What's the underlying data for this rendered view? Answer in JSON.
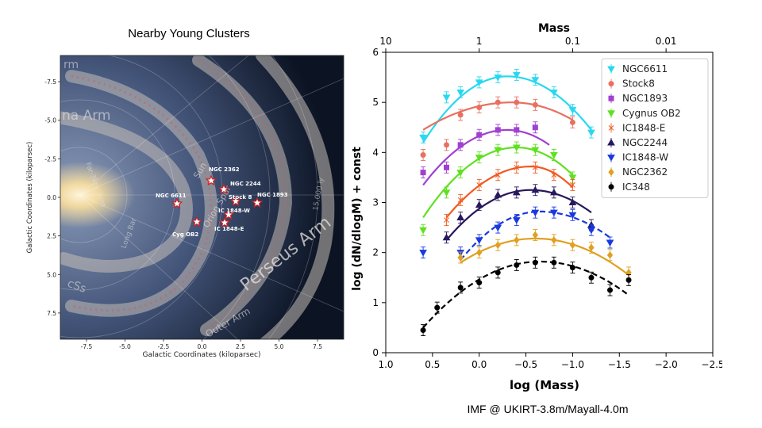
{
  "left_panel": {
    "title": "Nearby Young Clusters",
    "x_axis_label": "Galactic Coordinates (kiloparsec)",
    "y_axis_label": "Galactic Coordinates (kiloparsec)",
    "x_ticks": [
      "-7.5",
      "-5.0",
      "-2.5",
      "0.0",
      "2.5",
      "5.0",
      "7.5"
    ],
    "y_ticks": [
      "-7.5",
      "-5.0",
      "-2.5",
      "0.0",
      "2.5",
      "5.0",
      "7.5"
    ],
    "arm_labels": [
      "Perseus Arm",
      "na Arm",
      "Orion Spur",
      "Sun",
      "Far-3kpc Arm",
      "Long Bar",
      "Outer Arm",
      "15,000 ly",
      "cSs",
      "rm"
    ],
    "clusters": [
      "NGC 6611",
      "Cyg OB2",
      "NGC 2362",
      "NGC 2244",
      "Stock 8",
      "IC 1848-W",
      "IC 1848-E",
      "NGC 1893"
    ],
    "colors": {
      "star": "#ffffff",
      "star_outline": "#d02020",
      "space": "#0c1424",
      "bulge": "#f0d8a0"
    }
  },
  "caption": "IMF @ UKIRT-3.8m/Mayall-4.0m",
  "chart_data": {
    "type": "scatter",
    "xlabel": "log (Mass)",
    "ylabel": "log (dN/dlogM) + const",
    "top_axis_label": "Mass",
    "top_ticks": [
      "10",
      "1",
      "0.1",
      "0.01"
    ],
    "top_tick_values": [
      1,
      0,
      -1,
      -2
    ],
    "xlim": [
      1.0,
      -2.5
    ],
    "ylim": [
      0,
      6
    ],
    "x_ticks": [
      "1.0",
      "0.5",
      "0.0",
      "−0.5",
      "−1.0",
      "−1.5",
      "−2.0",
      "−2.5"
    ],
    "x_tick_values": [
      1.0,
      0.5,
      0.0,
      -0.5,
      -1.0,
      -1.5,
      -2.0,
      -2.5
    ],
    "y_ticks": [
      "0",
      "1",
      "2",
      "3",
      "4",
      "5",
      "6"
    ],
    "y_tick_values": [
      0,
      1,
      2,
      3,
      4,
      5,
      6
    ],
    "legend_position": "top-right",
    "grid": false,
    "series": [
      {
        "name": "NGC6611",
        "color": "#28d8f0",
        "marker": "triangle-down",
        "x": [
          0.6,
          0.35,
          0.2,
          0.0,
          -0.2,
          -0.4,
          -0.6,
          -0.8,
          -1.0,
          -1.2
        ],
        "y": [
          4.3,
          5.1,
          5.2,
          5.4,
          5.5,
          5.55,
          5.45,
          5.2,
          4.85,
          4.4
        ],
        "fit_x": [
          0.6,
          -1.2
        ],
        "fit_peak_x": -0.3,
        "fit_peak_y": 5.52,
        "fit_end_y": [
          4.2,
          4.45
        ],
        "fit_style": "solid"
      },
      {
        "name": "Stock8",
        "color": "#e87060",
        "marker": "circle",
        "x": [
          0.6,
          0.35,
          0.2,
          0.0,
          -0.2,
          -0.4,
          -0.6,
          -1.0
        ],
        "y": [
          3.95,
          4.15,
          4.75,
          4.9,
          5.0,
          5.0,
          4.95,
          4.6
        ],
        "fit_x": [
          0.6,
          -1.0
        ],
        "fit_peak_x": -0.35,
        "fit_peak_y": 5.0,
        "fit_end_y": [
          4.45,
          4.65
        ],
        "fit_style": "solid"
      },
      {
        "name": "NGC1893",
        "color": "#a040d0",
        "marker": "square",
        "x": [
          0.6,
          0.35,
          0.2,
          0.0,
          -0.2,
          -0.4,
          -0.6
        ],
        "y": [
          3.6,
          3.7,
          4.15,
          4.35,
          4.45,
          4.45,
          4.5
        ],
        "fit_x": [
          0.6,
          -0.75
        ],
        "fit_peak_x": -0.3,
        "fit_peak_y": 4.45,
        "fit_end_y": [
          3.35,
          4.15
        ],
        "fit_style": "solid"
      },
      {
        "name": "Cygnus OB2",
        "color": "#60e020",
        "marker": "triangle-down",
        "x": [
          0.6,
          0.35,
          0.2,
          0.0,
          -0.2,
          -0.4,
          -0.6,
          -0.8,
          -1.0
        ],
        "y": [
          2.45,
          3.2,
          3.6,
          3.9,
          4.05,
          4.1,
          4.05,
          3.95,
          3.5
        ],
        "fit_x": [
          0.6,
          -1.0
        ],
        "fit_peak_x": -0.4,
        "fit_peak_y": 4.1,
        "fit_end_y": [
          2.7,
          3.55
        ],
        "fit_style": "solid"
      },
      {
        "name": "IC1848-E",
        "color": "#f05a20",
        "marker": "x",
        "x": [
          0.35,
          0.2,
          0.0,
          -0.2,
          -0.4,
          -0.6,
          -0.8,
          -1.0
        ],
        "y": [
          2.65,
          3.05,
          3.35,
          3.55,
          3.7,
          3.7,
          3.55,
          3.35
        ],
        "fit_x": [
          0.35,
          -1.0
        ],
        "fit_peak_x": -0.55,
        "fit_peak_y": 3.72,
        "fit_end_y": [
          2.7,
          3.3
        ],
        "fit_style": "solid"
      },
      {
        "name": "NGC2244",
        "color": "#28185c",
        "marker": "triangle-up",
        "x": [
          0.35,
          0.2,
          0.0,
          -0.2,
          -0.4,
          -0.6,
          -0.8,
          -1.0,
          -1.2
        ],
        "y": [
          2.3,
          2.7,
          2.95,
          3.15,
          3.2,
          3.25,
          3.2,
          3.0,
          2.55
        ],
        "fit_x": [
          0.35,
          -1.2
        ],
        "fit_peak_x": -0.55,
        "fit_peak_y": 3.25,
        "fit_end_y": [
          2.25,
          2.8
        ],
        "fit_style": "solid"
      },
      {
        "name": "IC1848-W",
        "color": "#1838e0",
        "marker": "triangle-down",
        "x": [
          0.6,
          0.2,
          0.0,
          -0.2,
          -0.4,
          -0.6,
          -0.8,
          -1.0,
          -1.2,
          -1.4
        ],
        "y": [
          2.0,
          2.0,
          2.25,
          2.5,
          2.65,
          2.8,
          2.8,
          2.75,
          2.45,
          2.2
        ],
        "fit_x": [
          0.2,
          -1.4
        ],
        "fit_peak_x": -0.65,
        "fit_peak_y": 2.82,
        "fit_end_y": [
          1.85,
          2.3
        ],
        "fit_style": "dashed"
      },
      {
        "name": "NGC2362",
        "color": "#e0a020",
        "marker": "diamond",
        "x": [
          0.2,
          0.0,
          -0.2,
          -0.4,
          -0.6,
          -0.8,
          -1.0,
          -1.2,
          -1.4,
          -1.6
        ],
        "y": [
          1.9,
          2.0,
          2.15,
          2.25,
          2.35,
          2.25,
          2.15,
          2.1,
          1.95,
          1.6
        ],
        "fit_x": [
          0.2,
          -1.6
        ],
        "fit_peak_x": -0.6,
        "fit_peak_y": 2.28,
        "fit_end_y": [
          1.8,
          1.55
        ],
        "fit_style": "solid"
      },
      {
        "name": "IC348",
        "color": "#000000",
        "marker": "circle",
        "x": [
          0.6,
          0.45,
          0.2,
          0.0,
          -0.2,
          -0.4,
          -0.6,
          -0.8,
          -1.0,
          -1.2,
          -1.4,
          -1.6
        ],
        "y": [
          0.45,
          0.9,
          1.3,
          1.4,
          1.6,
          1.75,
          1.8,
          1.8,
          1.7,
          1.5,
          1.25,
          1.45
        ],
        "fit_x": [
          0.6,
          -1.6
        ],
        "fit_peak_x": -0.65,
        "fit_peak_y": 1.82,
        "fit_end_y": [
          0.5,
          1.15
        ],
        "fit_style": "dashed"
      }
    ]
  }
}
